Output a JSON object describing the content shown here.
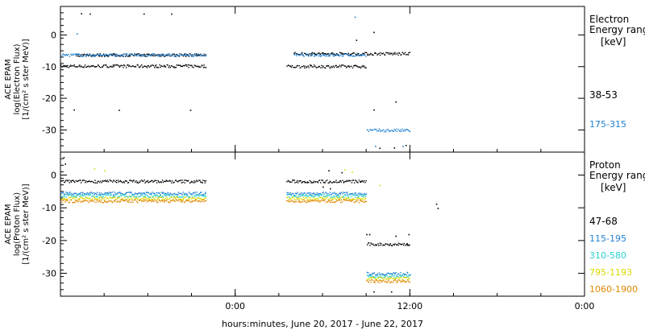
{
  "x_axis": {
    "title": "hours:minutes, June 20, 2017 - June 22, 2017",
    "tick_labels": [
      "0:00",
      "12:00",
      "0:00"
    ],
    "tick_hours": [
      24,
      36,
      48
    ],
    "range_hours": [
      12,
      48
    ]
  },
  "chart_data": [
    {
      "type": "scatter",
      "panel": "electron",
      "ylabel_lines": [
        "ACE EPAM",
        "log(Electron Flux)",
        "[1/(cm² s ster MeV)]"
      ],
      "yticks": [
        0,
        -10,
        -20,
        -30
      ],
      "ylim": [
        -37,
        9
      ],
      "legend_title": [
        "Electron",
        "Energy range",
        "[keV]"
      ],
      "series": [
        {
          "name": "38-53",
          "color": "#000000",
          "segments": [
            {
              "x0": 12.0,
              "x1": 22.0,
              "y": -9.7
            },
            {
              "x0": 13.0,
              "x1": 22.0,
              "y": -6.2
            },
            {
              "x0": 27.5,
              "x1": 33.0,
              "y": -9.8
            },
            {
              "x0": 28.0,
              "x1": 36.0,
              "y": -5.8
            }
          ],
          "outliers": [
            [
              13.4,
              6.9
            ],
            [
              14.0,
              6.8
            ],
            [
              17.7,
              6.8
            ],
            [
              19.6,
              6.8
            ],
            [
              12.9,
              -23.5
            ],
            [
              16.0,
              -23.6
            ],
            [
              20.9,
              -23.6
            ],
            [
              33.5,
              -23.5
            ],
            [
              32.3,
              -1.5
            ],
            [
              33.5,
              1.0
            ],
            [
              35.0,
              -21.0
            ],
            [
              34.9,
              -35.5
            ],
            [
              35.7,
              -34.7
            ],
            [
              33.9,
              -35.6
            ]
          ]
        },
        {
          "name": "175-315",
          "color": "#1f7fd0",
          "segments": [
            {
              "x0": 12.0,
              "x1": 22.0,
              "y": -6.2
            },
            {
              "x0": 28.0,
              "x1": 33.0,
              "y": -6.2
            },
            {
              "x0": 33.0,
              "x1": 36.0,
              "y": -30.0
            }
          ],
          "outliers": [
            [
              13.1,
              0.5
            ],
            [
              32.2,
              5.8
            ],
            [
              33.6,
              -35.0
            ],
            [
              35.5,
              -35.0
            ]
          ]
        }
      ]
    },
    {
      "type": "scatter",
      "panel": "proton",
      "ylabel_lines": [
        "ACE EPAM",
        "log(Proton Flux)",
        "[1/(cm² s ster MeV)]"
      ],
      "yticks": [
        0,
        -10,
        -20,
        -30
      ],
      "ylim": [
        -37,
        7
      ],
      "legend_title": [
        "Proton",
        "Energy range",
        "[keV]"
      ],
      "series": [
        {
          "name": "47-68",
          "color": "#000000",
          "segments": [
            {
              "x0": 12.0,
              "x1": 22.0,
              "y": -1.8
            },
            {
              "x0": 27.5,
              "x1": 33.0,
              "y": -1.8
            },
            {
              "x0": 33.0,
              "x1": 36.0,
              "y": -21.0
            }
          ],
          "outliers": [
            [
              12.2,
              5.5
            ],
            [
              12.3,
              3.5
            ],
            [
              30.0,
              -3.5
            ],
            [
              30.5,
              -4.0
            ],
            [
              33.0,
              -18.0
            ],
            [
              33.2,
              -18.0
            ],
            [
              35.0,
              -18.5
            ],
            [
              35.9,
              -18.0
            ],
            [
              35.8,
              -21.0
            ],
            [
              33.5,
              -35.5
            ],
            [
              34.7,
              -35.5
            ],
            [
              37.8,
              -8.7
            ],
            [
              37.9,
              -10.0
            ],
            [
              30.4,
              1.5
            ],
            [
              31.3,
              0.9
            ]
          ]
        },
        {
          "name": "115-195",
          "color": "#1f7fd0",
          "segments": [
            {
              "x0": 12.0,
              "x1": 22.0,
              "y": -5.5
            },
            {
              "x0": 27.5,
              "x1": 33.0,
              "y": -5.5
            },
            {
              "x0": 33.0,
              "x1": 36.0,
              "y": -30.0
            }
          ],
          "outliers": []
        },
        {
          "name": "310-580",
          "color": "#2ad0d0",
          "segments": [
            {
              "x0": 12.0,
              "x1": 22.0,
              "y": -6.2
            },
            {
              "x0": 27.5,
              "x1": 33.0,
              "y": -6.2
            },
            {
              "x0": 33.0,
              "x1": 36.0,
              "y": -30.8
            }
          ],
          "outliers": []
        },
        {
          "name": "795-1193",
          "color": "#d9d900",
          "segments": [
            {
              "x0": 12.0,
              "x1": 22.0,
              "y": -7.0
            },
            {
              "x0": 27.5,
              "x1": 33.0,
              "y": -7.0
            },
            {
              "x0": 33.0,
              "x1": 36.0,
              "y": -31.5
            }
          ],
          "outliers": [
            [
              14.3,
              2.0
            ],
            [
              15.0,
              1.5
            ],
            [
              31.5,
              1.8
            ],
            [
              32.0,
              1.0
            ],
            [
              33.9,
              -3.0
            ]
          ]
        },
        {
          "name": "1060-1900",
          "color": "#e08800",
          "segments": [
            {
              "x0": 12.0,
              "x1": 22.0,
              "y": -7.8
            },
            {
              "x0": 27.5,
              "x1": 33.0,
              "y": -7.8
            },
            {
              "x0": 33.0,
              "x1": 36.0,
              "y": -32.3
            }
          ],
          "outliers": []
        }
      ]
    }
  ]
}
